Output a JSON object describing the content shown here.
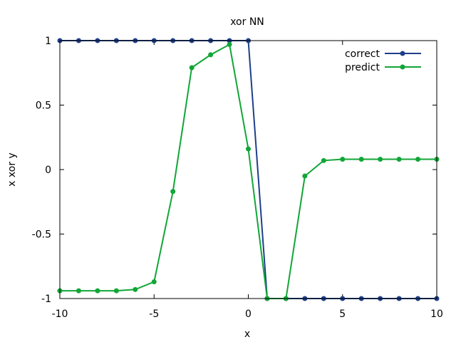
{
  "chart_data": {
    "type": "line",
    "title": "xor NN",
    "xlabel": "x",
    "ylabel": "x xor y",
    "xlim": [
      -10,
      10
    ],
    "ylim": [
      -1,
      1
    ],
    "xticks": [
      -10,
      -5,
      0,
      5,
      10
    ],
    "yticks": [
      -1,
      -0.5,
      0,
      0.5,
      1
    ],
    "xtick_labels": [
      "-10",
      "-5",
      "0",
      "5",
      "10"
    ],
    "ytick_labels": [
      "-1",
      "-0.5",
      "0",
      "0.5",
      "1"
    ],
    "grid": false,
    "legend_position": "top-right",
    "x": [
      -10,
      -9,
      -8,
      -7,
      -6,
      -5,
      -4,
      -3,
      -2,
      -1,
      0,
      1,
      2,
      3,
      4,
      5,
      6,
      7,
      8,
      9,
      10
    ],
    "series": [
      {
        "name": "correct",
        "color": "#1f3f8a",
        "values": [
          1,
          1,
          1,
          1,
          1,
          1,
          1,
          1,
          1,
          1,
          1,
          -1,
          -1,
          -1,
          -1,
          -1,
          -1,
          -1,
          -1,
          -1,
          -1
        ]
      },
      {
        "name": "predict",
        "color": "#11a637",
        "values": [
          -0.94,
          -0.94,
          -0.94,
          -0.94,
          -0.93,
          -0.87,
          -0.17,
          0.79,
          0.89,
          0.97,
          0.16,
          -1.0,
          -1.0,
          -0.05,
          0.07,
          0.08,
          0.08,
          0.08,
          0.08,
          0.08,
          0.08
        ]
      }
    ]
  }
}
